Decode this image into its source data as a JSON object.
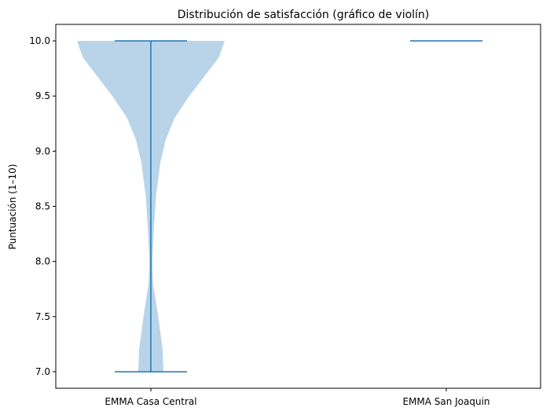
{
  "chart_data": {
    "type": "violin",
    "title": "Distribución de satisfacción (gráfico de violín)",
    "xlabel": "",
    "ylabel": "Puntuación (1–10)",
    "ylim": [
      6.85,
      10.15
    ],
    "yticks": [
      7.0,
      7.5,
      8.0,
      8.5,
      9.0,
      9.5,
      10.0
    ],
    "ytick_labels": [
      "7.0",
      "7.5",
      "8.0",
      "8.5",
      "9.0",
      "9.5",
      "10.0"
    ],
    "categories": [
      "EMMA Casa Central",
      "EMMA San Joaquin"
    ],
    "grid": false,
    "colors": {
      "body": "#b9d4e8",
      "line": "#1f77b4",
      "axis": "#000000"
    },
    "violins": [
      {
        "category": "EMMA Casa Central",
        "min": 7.0,
        "max": 10.0,
        "density": [
          [
            7.0,
            0.17
          ],
          [
            7.2,
            0.16
          ],
          [
            7.5,
            0.1
          ],
          [
            7.8,
            0.03
          ],
          [
            8.0,
            0.02
          ],
          [
            8.3,
            0.04
          ],
          [
            8.6,
            0.07
          ],
          [
            8.9,
            0.13
          ],
          [
            9.1,
            0.2
          ],
          [
            9.3,
            0.32
          ],
          [
            9.5,
            0.52
          ],
          [
            9.7,
            0.75
          ],
          [
            9.85,
            0.92
          ],
          [
            10.0,
            1.0
          ]
        ]
      },
      {
        "category": "EMMA San Joaquin",
        "min": 10.0,
        "max": 10.0,
        "density": []
      }
    ]
  }
}
